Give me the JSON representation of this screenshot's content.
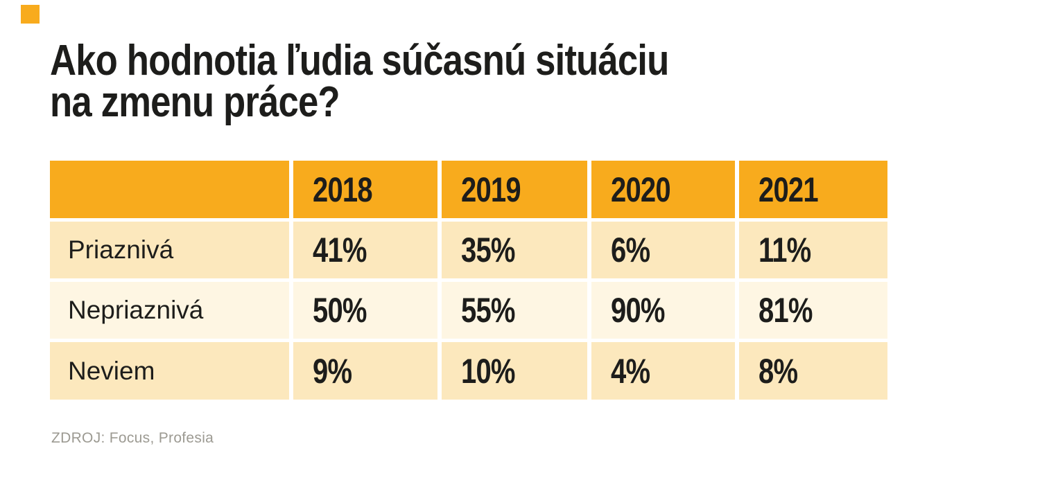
{
  "title": {
    "line1": "Ako hodnotia ľudia súčasnú situáciu",
    "line2": "na zmenu práce?"
  },
  "source": {
    "label": "ZDROJ: Focus, Profesia"
  },
  "colors": {
    "orange": "#F8AB1D",
    "cream": "#FCE8BD",
    "light_cream": "#FEF6E3",
    "ink": "#1D1D1B",
    "source_gray": "#9C9A92",
    "background": "#FFFFFF"
  },
  "chart_data": {
    "type": "table",
    "title": "Ako hodnotia ľudia súčasnú situáciu na zmenu práce?",
    "columns": [
      "",
      "2018",
      "2019",
      "2020",
      "2021"
    ],
    "rows": [
      {
        "label": "Priaznivá",
        "values": [
          "41%",
          "35%",
          "6%",
          "11%"
        ]
      },
      {
        "label": "Nepriaznivá",
        "values": [
          "50%",
          "55%",
          "90%",
          "81%"
        ]
      },
      {
        "label": "Neviem",
        "values": [
          "9%",
          "10%",
          "4%",
          "8%"
        ]
      }
    ],
    "source": "ZDROJ: Focus, Profesia",
    "layout_hints": {
      "header_fill": "#F8AB1D",
      "row_fills": [
        "#FCE8BD",
        "#FEF6E3",
        "#FCE8BD"
      ],
      "grid": "white-gutters"
    }
  }
}
